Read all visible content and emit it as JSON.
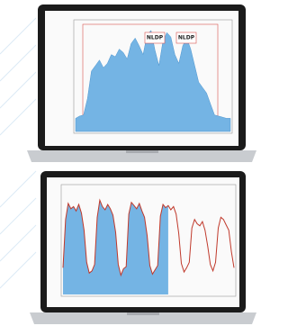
{
  "screens": [
    {
      "values": [
        12,
        14,
        15,
        30,
        55,
        60,
        65,
        58,
        62,
        70,
        68,
        75,
        72,
        66,
        80,
        85,
        78,
        70,
        88,
        92,
        74,
        60,
        82,
        90,
        86,
        70,
        62,
        78,
        85,
        75,
        60,
        45,
        40,
        35,
        25,
        15,
        14,
        13,
        12,
        12
      ],
      "annotations": [
        "NLDP",
        "NLDP"
      ]
    },
    {
      "values": [
        25,
        70,
        85,
        80,
        82,
        78,
        84,
        76,
        60,
        30,
        20,
        22,
        28,
        72,
        88,
        82,
        79,
        84,
        80,
        74,
        58,
        28,
        18,
        24,
        26,
        75,
        86,
        83,
        80,
        85,
        78,
        72,
        55,
        27,
        19,
        23,
        27,
        73,
        84,
        81,
        83,
        79,
        82,
        75,
        57,
        29,
        21,
        25,
        30,
        62,
        70,
        66,
        64,
        68,
        60,
        45,
        28,
        22,
        30,
        62,
        72,
        70,
        65,
        60,
        40,
        25
      ]
    }
  ]
}
